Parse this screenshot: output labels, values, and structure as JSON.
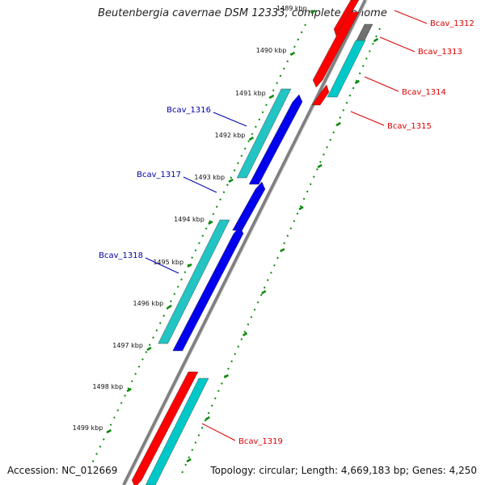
{
  "title": "Beutenbergia cavernae DSM 12333, complete genome",
  "footer": {
    "accession": "Accession: NC_012669",
    "summary": "Topology: circular; Length: 4,669,183 bp; Genes: 4,250"
  },
  "colors": {
    "forward_gene": "#ff0000",
    "forward_cds": "#00c8c8",
    "reverse_gene": "#0000ee",
    "reverse_cds": "#22c4c4",
    "backbone": "#808080",
    "tick": "#0a8a0a",
    "forward_label": "#dd0000",
    "reverse_label": "#0000aa"
  },
  "ticks": [
    {
      "label": "1489 kbp"
    },
    {
      "label": "1490 kbp"
    },
    {
      "label": "1491 kbp"
    },
    {
      "label": "1492 kbp"
    },
    {
      "label": "1493 kbp"
    },
    {
      "label": "1494 kbp"
    },
    {
      "label": "1495 kbp"
    },
    {
      "label": "1496 kbp"
    },
    {
      "label": "1497 kbp"
    },
    {
      "label": "1498 kbp"
    },
    {
      "label": "1499 kbp"
    }
  ],
  "genes": [
    {
      "name": "Bcav_1312",
      "strand": "forward"
    },
    {
      "name": "Bcav_1313",
      "strand": "forward"
    },
    {
      "name": "Bcav_1314",
      "strand": "forward"
    },
    {
      "name": "Bcav_1315",
      "strand": "forward"
    },
    {
      "name": "Bcav_1316",
      "strand": "reverse"
    },
    {
      "name": "Bcav_1317",
      "strand": "reverse"
    },
    {
      "name": "Bcav_1318",
      "strand": "reverse"
    },
    {
      "name": "Bcav_1319",
      "strand": "forward"
    }
  ]
}
